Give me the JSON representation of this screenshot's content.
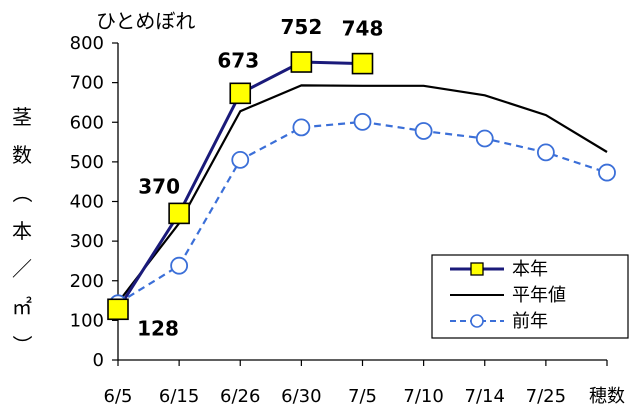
{
  "chart_data": {
    "type": "line",
    "title": "ひとめぼれ",
    "ylabel_chars": [
      "茎",
      "数",
      "（",
      "本",
      "／",
      "㎡",
      "）"
    ],
    "categories": [
      "6/5",
      "6/15",
      "6/26",
      "6/30",
      "7/5",
      "7/10",
      "7/14",
      "7/25",
      "穂数"
    ],
    "ylim": [
      0,
      800
    ],
    "yticks": [
      "0",
      "100",
      "200",
      "300",
      "400",
      "500",
      "600",
      "700",
      "800"
    ],
    "grid": false,
    "legend_position": "bottom-right",
    "series": [
      {
        "name": "本年",
        "color": "#1a1a7a",
        "marker": "square",
        "marker_fill": "#ffff00",
        "dash": false,
        "values": [
          128,
          370,
          673,
          752,
          748,
          null,
          null,
          null,
          null
        ]
      },
      {
        "name": "平年値",
        "color": "#000000",
        "marker": "none",
        "dash": false,
        "values": [
          145,
          345,
          628,
          693,
          692,
          692,
          668,
          618,
          525
        ]
      },
      {
        "name": "前年",
        "color": "#3b6fd8",
        "marker": "circle",
        "marker_fill": "#ffffff",
        "dash": true,
        "values": [
          143,
          238,
          505,
          587,
          601,
          578,
          559,
          524,
          473
        ]
      }
    ],
    "data_labels": [
      {
        "text": "128",
        "category": "6/5",
        "value": 128
      },
      {
        "text": "370",
        "category": "6/15",
        "value": 370
      },
      {
        "text": "673",
        "category": "6/26",
        "value": 673
      },
      {
        "text": "752",
        "category": "6/30",
        "value": 752
      },
      {
        "text": "748",
        "category": "7/5",
        "value": 748
      }
    ]
  }
}
